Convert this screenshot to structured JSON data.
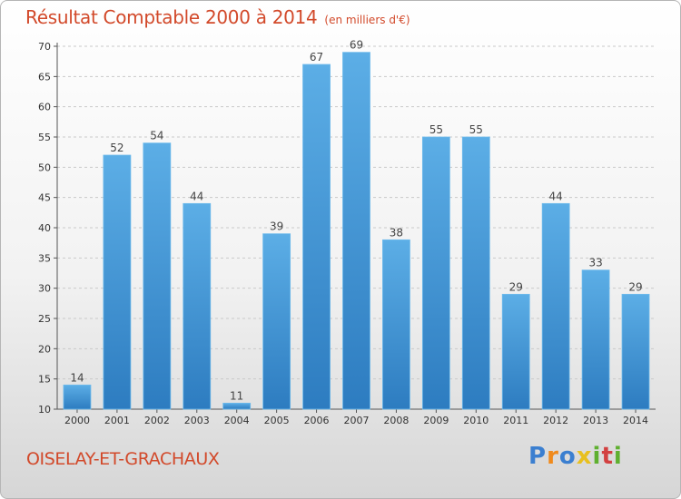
{
  "title": {
    "main": "Résultat Comptable 2000 à 2014",
    "unit": "(en milliers d'€)"
  },
  "commune": "OISELAY-ET-GRACHAUX",
  "logo": {
    "text": "Proxiti",
    "letters": [
      {
        "ch": "P",
        "color": "#3b7fd0"
      },
      {
        "ch": "r",
        "color": "#f08a1c"
      },
      {
        "ch": "o",
        "color": "#3b7fd0"
      },
      {
        "ch": "x",
        "color": "#e8c020"
      },
      {
        "ch": "i",
        "color": "#5fb030"
      },
      {
        "ch": "t",
        "color": "#d24040"
      },
      {
        "ch": "i",
        "color": "#5fb030"
      }
    ]
  },
  "colors": {
    "bar_light": "#5caee6",
    "bar_dark": "#2d7cc0",
    "title": "#d2492a"
  },
  "chart_data": {
    "type": "bar",
    "title": "Résultat Comptable 2000 à 2014 (en milliers d'€)",
    "xlabel": "",
    "ylabel": "",
    "categories": [
      "2000",
      "2001",
      "2002",
      "2003",
      "2004",
      "2005",
      "2006",
      "2007",
      "2008",
      "2009",
      "2010",
      "2011",
      "2012",
      "2013",
      "2014"
    ],
    "values": [
      14,
      52,
      54,
      44,
      11,
      39,
      67,
      69,
      38,
      55,
      55,
      29,
      44,
      33,
      29
    ],
    "ylim": [
      10,
      70
    ],
    "yticks": [
      10,
      15,
      20,
      25,
      30,
      35,
      40,
      45,
      50,
      55,
      60,
      65,
      70
    ],
    "grid": true
  }
}
